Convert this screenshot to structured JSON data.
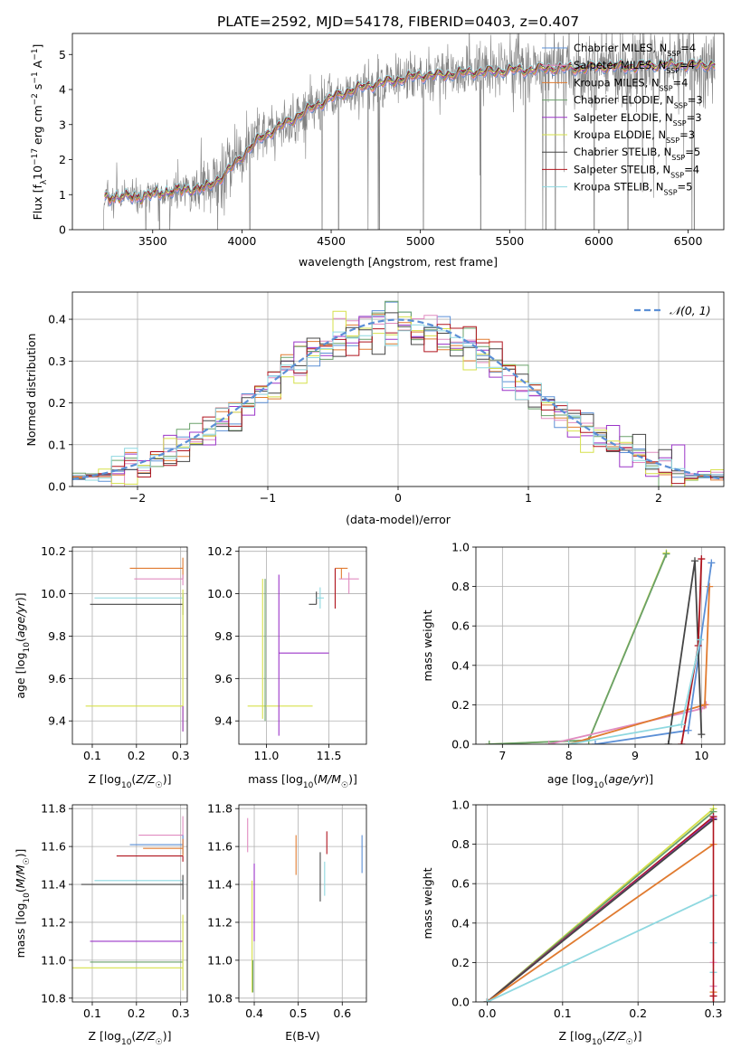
{
  "figure": {
    "title": "PLATE=2592, MJD=54178, FIBERID=0403, z=0.407"
  },
  "chart_data": [
    {
      "type": "line",
      "id": "spectrum",
      "title": "PLATE=2592, MJD=54178, FIBERID=0403, z=0.407",
      "xlabel": "wavelength [Angstrom, rest frame]",
      "ylabel": "Flux [f_λ 10^-17 erg cm^-2 s^-1 A^-1]",
      "xlim": [
        3050,
        6700
      ],
      "ylim": [
        0,
        5.6
      ],
      "xticks": [
        3500,
        4000,
        4500,
        5000,
        5500,
        6000,
        6500
      ],
      "yticks": [
        0,
        1,
        2,
        3,
        4,
        5
      ],
      "legend_position": "upper right",
      "legend": [
        {
          "name": "Chabrier MILES, N_SSP=4",
          "base": "Chabrier MILES, N",
          "sub": "SSP",
          "tail": "=4",
          "color": "#5b8fd6"
        },
        {
          "name": "Salpeter MILES, N_SSP=4",
          "base": "Salpeter MILES, N",
          "sub": "SSP",
          "tail": "=4",
          "color": "#e08bc0"
        },
        {
          "name": "Kroupa MILES, N_SSP=4",
          "base": "Kroupa MILES, N",
          "sub": "SSP",
          "tail": "=4",
          "color": "#e07b30"
        },
        {
          "name": "Chabrier ELODIE, N_SSP=3",
          "base": "Chabrier ELODIE, N",
          "sub": "SSP",
          "tail": "=3",
          "color": "#6aa16a"
        },
        {
          "name": "Salpeter ELODIE, N_SSP=3",
          "base": "Salpeter ELODIE, N",
          "sub": "SSP",
          "tail": "=3",
          "color": "#9b35c8"
        },
        {
          "name": "Kroupa ELODIE, N_SSP=3",
          "base": "Kroupa ELODIE, N",
          "sub": "SSP",
          "tail": "=3",
          "color": "#d6e04a"
        },
        {
          "name": "Chabrier STELIB, N_SSP=5",
          "base": "Chabrier STELIB, N",
          "sub": "SSP",
          "tail": "=5",
          "color": "#454545"
        },
        {
          "name": "Salpeter STELIB, N_SSP=4",
          "base": "Salpeter STELIB, N",
          "sub": "SSP",
          "tail": "=4",
          "color": "#b0141e"
        },
        {
          "name": "Kroupa STELIB, N_SSP=5",
          "base": "Kroupa STELIB, N",
          "sub": "SSP",
          "tail": "=5",
          "color": "#8ed8e0"
        }
      ],
      "data_color": "#808080",
      "model_continuum": {
        "x": [
          3230,
          3300,
          3400,
          3500,
          3600,
          3700,
          3800,
          3900,
          4000,
          4100,
          4200,
          4300,
          4400,
          4500,
          4600,
          4700,
          4800,
          4900,
          5000,
          5100,
          5200,
          5300,
          5400,
          5500,
          5600,
          5700,
          5800,
          5900,
          6000,
          6100,
          6200,
          6300,
          6400,
          6500
        ],
        "y": [
          0.9,
          0.95,
          0.93,
          1.0,
          1.1,
          1.15,
          1.2,
          1.55,
          2.1,
          2.6,
          2.9,
          3.2,
          3.5,
          3.75,
          3.95,
          4.1,
          4.2,
          4.3,
          4.4,
          4.4,
          4.45,
          4.5,
          4.5,
          4.55,
          4.55,
          4.6,
          4.6,
          4.6,
          4.65,
          4.65,
          4.65,
          4.7,
          4.7,
          4.7
        ]
      }
    },
    {
      "type": "step",
      "id": "residuals",
      "xlabel": "(data-model)/error",
      "ylabel": "Normed distribution",
      "xlim": [
        -2.5,
        2.5
      ],
      "ylim": [
        0,
        0.465
      ],
      "xticks": [
        -2,
        -1,
        0,
        1,
        2
      ],
      "yticks": [
        0.0,
        0.1,
        0.2,
        0.3,
        0.4
      ],
      "legend_position": "upper right",
      "reference_curve": {
        "name": "𝒩(0, 1)",
        "color": "#5b8fd6"
      },
      "bin_width": 0.1
    },
    {
      "type": "errorbar",
      "id": "age-vs-Z",
      "xlabel": "Z [log10(Z/Z☉)]",
      "ylabel": "age [log10(age/yr)]",
      "xlim": [
        0.055,
        0.315
      ],
      "ylim": [
        9.29,
        10.22
      ],
      "xticks": [
        0.1,
        0.2,
        0.3
      ],
      "yticks": [
        9.4,
        9.6,
        9.8,
        10.0,
        10.2
      ],
      "bars": [
        {
          "series": "Kroupa MILES",
          "x": 0.305,
          "xerr": [
            0.12,
            0.0
          ],
          "y": 10.12,
          "yerr": [
            0.05,
            0.05
          ]
        },
        {
          "series": "Salpeter MILES",
          "x": 0.305,
          "xerr": [
            0.11,
            0.0
          ],
          "y": 10.07,
          "yerr": [
            0.03,
            0.02
          ]
        },
        {
          "series": "Chabrier STELIB",
          "x": 0.305,
          "xerr": [
            0.21,
            0.0
          ],
          "y": 9.95,
          "yerr": [
            0.05,
            0.05
          ]
        },
        {
          "series": "Kroupa STELIB",
          "x": 0.305,
          "xerr": [
            0.2,
            0.0
          ],
          "y": 9.98,
          "yerr": [
            0.02,
            0.02
          ]
        },
        {
          "series": "Kroupa ELODIE",
          "x": 0.305,
          "xerr": [
            0.22,
            0.0
          ],
          "y": 9.47,
          "yerr": [
            0.12,
            0.55
          ]
        },
        {
          "series": "Salpeter ELODIE",
          "x": 0.305,
          "xerr": [
            0.0,
            0.0
          ],
          "y": 9.47,
          "yerr": [
            0.12,
            0.0
          ]
        }
      ]
    },
    {
      "type": "errorbar",
      "id": "age-vs-mass",
      "xlabel": "mass [log10(M/M☉)]",
      "ylabel": "",
      "xlim": [
        10.78,
        11.8
      ],
      "ylim": [
        9.29,
        10.22
      ],
      "xticks": [
        11.0,
        11.5
      ],
      "yticks": [
        9.4,
        9.6,
        9.8,
        10.0,
        10.2
      ],
      "bars": [
        {
          "series": "Kroupa ELODIE",
          "x": 10.97,
          "xerr": [
            0.12,
            0.4
          ],
          "y": 9.47,
          "yerr": [
            0.06,
            0.6
          ]
        },
        {
          "series": "Chabrier ELODIE",
          "x": 10.99,
          "xerr": [
            0.0,
            0.0
          ],
          "y": 9.7,
          "yerr": [
            0.3,
            0.37
          ]
        },
        {
          "series": "Salpeter ELODIE",
          "x": 11.1,
          "xerr": [
            0.0,
            0.4
          ],
          "y": 9.72,
          "yerr": [
            0.39,
            0.37
          ]
        },
        {
          "series": "Chabrier STELIB",
          "x": 11.4,
          "xerr": [
            0.06,
            0.0
          ],
          "y": 9.95,
          "yerr": [
            0.0,
            0.06
          ]
        },
        {
          "series": "Kroupa STELIB",
          "x": 11.43,
          "xerr": [
            0.03,
            0.03
          ],
          "y": 9.98,
          "yerr": [
            0.05,
            0.05
          ]
        },
        {
          "series": "Kroupa MILES",
          "x": 11.6,
          "xerr": [
            0.05,
            0.05
          ],
          "y": 10.12,
          "yerr": [
            0.05,
            0.0
          ]
        },
        {
          "series": "Salpeter MILES",
          "x": 11.66,
          "xerr": [
            0.08,
            0.08
          ],
          "y": 10.07,
          "yerr": [
            0.07,
            0.03
          ]
        },
        {
          "series": "Salpeter STELIB",
          "x": 11.55,
          "xerr": [
            0.0,
            0.0
          ],
          "y": 10.02,
          "yerr": [
            0.09,
            0.1
          ]
        }
      ]
    },
    {
      "type": "line",
      "id": "mass-weight-vs-age",
      "xlabel": "age [log10(age/yr)]",
      "ylabel": "mass weight",
      "xlim": [
        6.6,
        10.35
      ],
      "ylim": [
        0,
        1
      ],
      "xticks": [
        7,
        8,
        9,
        10
      ],
      "yticks": [
        0.0,
        0.2,
        0.4,
        0.6,
        0.8,
        1.0
      ],
      "series": [
        {
          "name": "Kroupa ELODIE",
          "x": [
            6.8,
            8.3,
            9.47
          ],
          "y": [
            0.0,
            0.02,
            0.97
          ]
        },
        {
          "name": "Chabrier ELODIE",
          "x": [
            6.8,
            8.3,
            9.47
          ],
          "y": [
            0.0,
            0.02,
            0.965
          ]
        },
        {
          "name": "Salpeter MILES",
          "x": [
            7.7,
            10.0,
            10.07
          ],
          "y": [
            0.0,
            0.18,
            0.2
          ]
        },
        {
          "name": "Kroupa MILES",
          "x": [
            8.0,
            10.05,
            10.12
          ],
          "y": [
            0.0,
            0.2,
            0.8
          ]
        },
        {
          "name": "Chabrier MILES",
          "x": [
            8.4,
            9.8,
            10.15
          ],
          "y": [
            0.0,
            0.07,
            0.92
          ]
        },
        {
          "name": "Chabrier STELIB",
          "x": [
            9.5,
            9.9,
            10.0
          ],
          "y": [
            0.0,
            0.93,
            0.05
          ]
        },
        {
          "name": "Salpeter STELIB",
          "x": [
            9.7,
            9.95,
            10.0
          ],
          "y": [
            0.0,
            0.5,
            0.94
          ]
        },
        {
          "name": "Kroupa STELIB",
          "x": [
            8.0,
            9.7,
            9.98
          ],
          "y": [
            0.0,
            0.1,
            0.53
          ]
        }
      ]
    },
    {
      "type": "errorbar",
      "id": "mass-vs-Z",
      "xlabel": "Z [log10(Z/Z☉)]",
      "ylabel": "mass [log10(M/M☉)]",
      "xlim": [
        0.055,
        0.315
      ],
      "ylim": [
        10.78,
        11.82
      ],
      "xticks": [
        0.1,
        0.2,
        0.3
      ],
      "yticks": [
        10.8,
        11.0,
        11.2,
        11.4,
        11.6,
        11.8
      ],
      "bars": [
        {
          "series": "Salpeter MILES",
          "x": 0.305,
          "xerr": [
            0.1,
            0.0
          ],
          "y": 11.66,
          "yerr": [
            0.05,
            0.1
          ]
        },
        {
          "series": "Chabrier MILES",
          "x": 0.305,
          "xerr": [
            0.12,
            0.0
          ],
          "y": 11.61,
          "yerr": [
            0.05,
            0.05
          ]
        },
        {
          "series": "Kroupa MILES",
          "x": 0.305,
          "xerr": [
            0.09,
            0.0
          ],
          "y": 11.59,
          "yerr": [
            0.04,
            0.05
          ]
        },
        {
          "series": "Salpeter STELIB",
          "x": 0.305,
          "xerr": [
            0.15,
            0.0
          ],
          "y": 11.55,
          "yerr": [
            0.03,
            0.0
          ]
        },
        {
          "series": "Kroupa STELIB",
          "x": 0.305,
          "xerr": [
            0.2,
            0.0
          ],
          "y": 11.42,
          "yerr": [
            0.0,
            0.0
          ]
        },
        {
          "series": "Chabrier STELIB",
          "x": 0.305,
          "xerr": [
            0.23,
            0.0
          ],
          "y": 11.4,
          "yerr": [
            0.08,
            0.05
          ]
        },
        {
          "series": "Salpeter ELODIE",
          "x": 0.305,
          "xerr": [
            0.21,
            0.0
          ],
          "y": 11.1,
          "yerr": [
            0.0,
            0.0
          ]
        },
        {
          "series": "Chabrier ELODIE",
          "x": 0.305,
          "xerr": [
            0.21,
            0.0
          ],
          "y": 10.99,
          "yerr": [
            0.0,
            0.0
          ]
        },
        {
          "series": "Kroupa ELODIE",
          "x": 0.305,
          "xerr": [
            0.25,
            0.0
          ],
          "y": 10.96,
          "yerr": [
            0.12,
            0.28
          ]
        }
      ]
    },
    {
      "type": "errorbar",
      "id": "mass-vs-ebv",
      "xlabel": "E(B-V)",
      "ylabel": "",
      "xlim": [
        0.365,
        0.655
      ],
      "ylim": [
        10.78,
        11.82
      ],
      "xticks": [
        0.4,
        0.5,
        0.6
      ],
      "yticks": [
        10.8,
        11.0,
        11.2,
        11.4,
        11.6,
        11.8
      ],
      "bars": [
        {
          "series": "Salpeter MILES",
          "x": 0.385,
          "y": 11.66,
          "yerr": [
            0.09,
            0.09
          ]
        },
        {
          "series": "Kroupa ELODIE",
          "x": 0.395,
          "y": 11.13,
          "yerr": [
            0.3,
            0.29
          ]
        },
        {
          "series": "Chabrier ELODIE",
          "x": 0.397,
          "y": 11.0,
          "yerr": [
            0.17,
            0.0
          ]
        },
        {
          "series": "Salpeter ELODIE",
          "x": 0.4,
          "y": 11.3,
          "yerr": [
            0.2,
            0.21
          ]
        },
        {
          "series": "Kroupa MILES",
          "x": 0.495,
          "y": 11.56,
          "yerr": [
            0.11,
            0.1
          ]
        },
        {
          "series": "Chabrier STELIB",
          "x": 0.55,
          "y": 11.44,
          "yerr": [
            0.13,
            0.13
          ]
        },
        {
          "series": "Kroupa STELIB",
          "x": 0.56,
          "y": 11.42,
          "yerr": [
            0.08,
            0.1
          ]
        },
        {
          "series": "Salpeter STELIB",
          "x": 0.565,
          "y": 11.62,
          "yerr": [
            0.06,
            0.06
          ]
        },
        {
          "series": "Chabrier MILES",
          "x": 0.645,
          "y": 11.56,
          "yerr": [
            0.1,
            0.1
          ]
        }
      ]
    },
    {
      "type": "line",
      "id": "mass-weight-vs-Z",
      "xlabel": "Z [log10(Z/Z☉)]",
      "ylabel": "mass weight",
      "xlim": [
        -0.015,
        0.315
      ],
      "ylim": [
        0,
        1
      ],
      "xticks": [
        0.0,
        0.1,
        0.2,
        0.3
      ],
      "yticks": [
        0.0,
        0.2,
        0.4,
        0.6,
        0.8,
        1.0
      ],
      "series": [
        {
          "name": "Kroupa ELODIE",
          "x": [
            0.0,
            0.3
          ],
          "y": [
            0.0,
            0.98
          ]
        },
        {
          "name": "Chabrier ELODIE",
          "x": [
            0.0,
            0.3
          ],
          "y": [
            0.0,
            0.965
          ]
        },
        {
          "name": "Salpeter STELIB",
          "x": [
            0.0,
            0.3
          ],
          "y": [
            0.0,
            0.94
          ]
        },
        {
          "name": "Salpeter ELODIE",
          "x": [
            0.0,
            0.3
          ],
          "y": [
            0.0,
            0.93
          ]
        },
        {
          "name": "Chabrier STELIB",
          "x": [
            0.0,
            0.3
          ],
          "y": [
            0.0,
            0.925
          ]
        },
        {
          "name": "Kroupa MILES",
          "x": [
            0.0,
            0.3
          ],
          "y": [
            0.0,
            0.8
          ]
        },
        {
          "name": "Kroupa STELIB",
          "x": [
            0.0,
            0.3
          ],
          "y": [
            0.0,
            0.54
          ]
        }
      ]
    }
  ]
}
